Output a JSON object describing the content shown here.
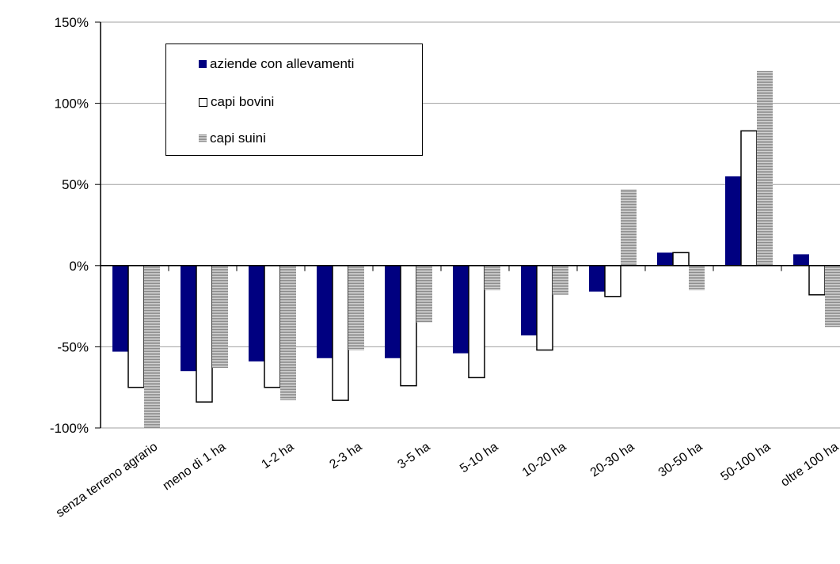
{
  "chart_data": {
    "type": "bar",
    "categories": [
      "senza terreno agrario",
      "meno di 1 ha",
      "1-2 ha",
      "2-3 ha",
      "3-5 ha",
      "5-10 ha",
      "10-20 ha",
      "20-30 ha",
      "30-50 ha",
      "50-100 ha",
      "oltre 100 ha"
    ],
    "series": [
      {
        "name": "aziende con allevamenti",
        "values": [
          -53,
          -65,
          -59,
          -57,
          -57,
          -54,
          -43,
          -16,
          8,
          55,
          7
        ]
      },
      {
        "name": "capi bovini",
        "values": [
          -75,
          -84,
          -75,
          -83,
          -74,
          -69,
          -52,
          -19,
          8,
          83,
          -18
        ]
      },
      {
        "name": "capi suini",
        "values": [
          -100,
          -63,
          -83,
          -52,
          -35,
          -15,
          -18,
          47,
          -15,
          120,
          -38
        ]
      }
    ],
    "y_ticks": [
      "150%",
      "100%",
      "50%",
      "0%",
      "-50%",
      "-100%"
    ],
    "ylim": [
      -100,
      150
    ],
    "grid": true,
    "legend_position": "top-left",
    "colors": [
      "#000080",
      "#ffffff",
      "#a8a8a8"
    ]
  }
}
